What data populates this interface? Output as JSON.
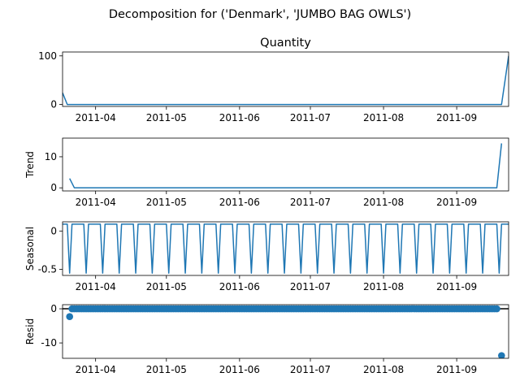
{
  "chart_data": {
    "type": "line",
    "title": "Decomposition for ('Denmark', 'JUMBO BAG OWLS')",
    "date_ticks": [
      {
        "date": "2011-04-01",
        "label": "2011-04"
      },
      {
        "date": "2011-05-01",
        "label": "2011-05"
      },
      {
        "date": "2011-06-01",
        "label": "2011-06"
      },
      {
        "date": "2011-07-01",
        "label": "2011-07"
      },
      {
        "date": "2011-08-01",
        "label": "2011-08"
      },
      {
        "date": "2011-09-01",
        "label": "2011-09"
      }
    ],
    "xlim": [
      "2011-03-18",
      "2011-09-23"
    ],
    "series_style": {
      "color": "#1f77b4"
    },
    "panels": [
      {
        "key": "observed",
        "subtitle": "Quantity",
        "ylabel": "",
        "ylim": [
          -4,
          108
        ],
        "yticks": [
          0,
          100
        ],
        "kind": "line",
        "baseline": 0,
        "points": [
          {
            "date": "2011-03-18",
            "value": 24
          },
          {
            "date": "2011-03-20",
            "value": 0
          },
          {
            "date": "2011-09-20",
            "value": 0
          },
          {
            "date": "2011-09-23",
            "value": 100
          }
        ]
      },
      {
        "key": "trend",
        "subtitle": "",
        "ylabel": "Trend",
        "ylim": [
          -1,
          16
        ],
        "yticks": [
          0,
          10
        ],
        "kind": "line",
        "points": [
          {
            "date": "2011-03-21",
            "value": 3
          },
          {
            "date": "2011-03-23",
            "value": 0
          },
          {
            "date": "2011-09-18",
            "value": 0
          },
          {
            "date": "2011-09-20",
            "value": 14.3
          }
        ]
      },
      {
        "key": "seasonal",
        "subtitle": "",
        "ylabel": "Seasonal",
        "ylim": [
          -0.58,
          0.12
        ],
        "yticks": [
          0.0,
          -0.5
        ],
        "kind": "seasonal",
        "start": "2011-03-18",
        "end": "2011-09-23",
        "period_days": 7,
        "high": 0.09,
        "low": -0.55,
        "first_dip": "2011-03-21",
        "dip_half_width_days": 1
      },
      {
        "key": "resid",
        "subtitle": "",
        "ylabel": "Resid",
        "ylim": [
          -14.5,
          1.2
        ],
        "yticks": [
          0,
          -10
        ],
        "kind": "scatter",
        "baseline": 0,
        "start": "2011-03-22",
        "end": "2011-09-18",
        "step_days": 1,
        "default_value": 0,
        "special_points": [
          {
            "date": "2011-03-21",
            "value": -2.3
          },
          {
            "date": "2011-09-20",
            "value": -13.7
          }
        ]
      }
    ]
  }
}
